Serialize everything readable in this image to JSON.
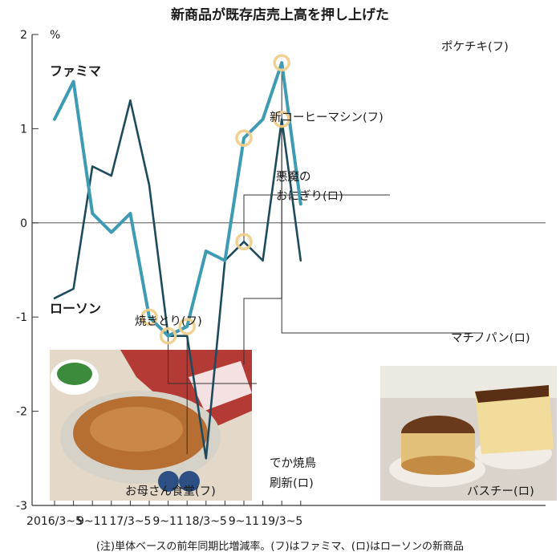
{
  "chart_data": {
    "type": "line",
    "title": "新商品が既存店売上高を押し上げた",
    "ylabel": "%",
    "ylim": [
      -3,
      2
    ],
    "yticks": [
      "2",
      "1",
      "0",
      "-1",
      "-2",
      "-3"
    ],
    "x_labels": [
      "2016/3~5",
      "9~11",
      "17/3~5",
      "9~11",
      "18/3~5",
      "9~11",
      "19/3~5"
    ],
    "x": [
      "2016/3~5",
      "16/6~8",
      "16/9~11",
      "16/12~2",
      "17/3~5",
      "17/6~8",
      "17/9~11",
      "17/12~2",
      "18/3~5",
      "18/6~8",
      "18/9~11",
      "18/12~2",
      "19/3~5",
      "19/6~8"
    ],
    "series": [
      {
        "name": "ファミマ",
        "color": "#3e9bb4",
        "values": [
          1.1,
          1.5,
          0.1,
          -0.1,
          0.1,
          -1.0,
          -1.2,
          -1.1,
          -0.3,
          -0.4,
          0.9,
          1.1,
          1.7,
          0.2
        ]
      },
      {
        "name": "ローソン",
        "color": "#1d4a5c",
        "values": [
          -0.8,
          -0.7,
          0.6,
          0.5,
          1.3,
          0.4,
          -1.2,
          -1.2,
          -2.5,
          -0.4,
          -0.2,
          -0.4,
          1.1,
          -0.4
        ]
      }
    ],
    "grid": false,
    "annotations": [
      {
        "text": "焼きとり(フ)"
      },
      {
        "text": "お母さん食堂(フ)"
      },
      {
        "text": "でか焼鳥"
      },
      {
        "text": "刷新(ロ)"
      },
      {
        "text": "悪魔の"
      },
      {
        "text": "おにぎり(ロ)"
      },
      {
        "text": "新コーヒーマシン(フ)"
      },
      {
        "text": "ポケチキ(フ)"
      },
      {
        "text": "マチノパン(ロ)"
      },
      {
        "text": "バスチー(ロ)"
      }
    ],
    "note": "(注)単体ベースの前年同期比増減率。(フ)はファミマ、(ロ)はローソンの新商品",
    "highlight_color": "#f0cf8c"
  }
}
